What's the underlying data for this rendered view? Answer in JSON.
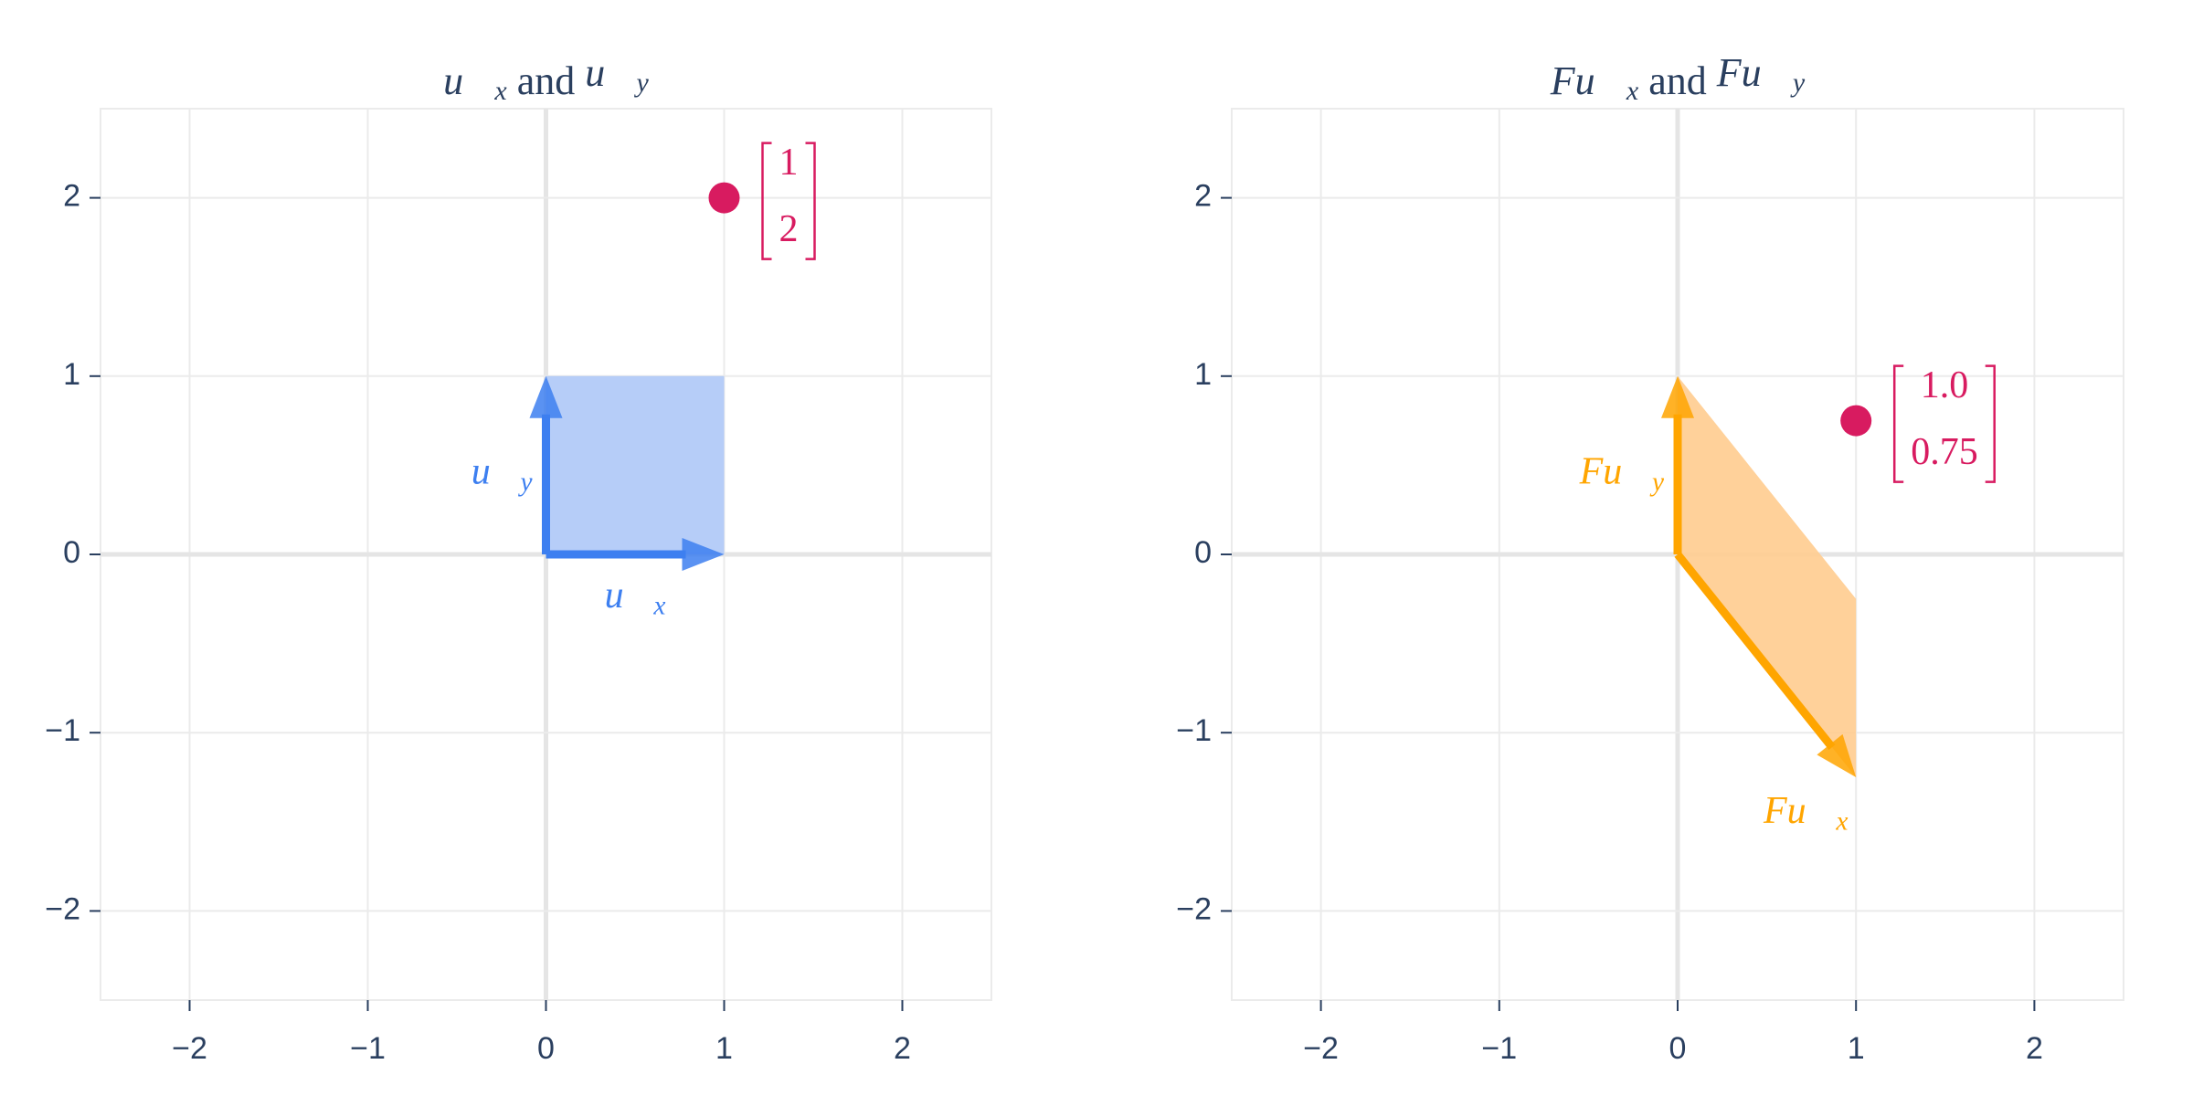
{
  "chart_data": [
    {
      "type": "vector",
      "title": [
        {
          "text": "u⃗",
          "sub": "x"
        },
        {
          "text": " and "
        },
        {
          "text": "u⃗",
          "sub": "y"
        }
      ],
      "xlim": [
        -2.5,
        2.5
      ],
      "ylim": [
        -2.5,
        2.5
      ],
      "xticks": [
        {
          "value": -2,
          "label": "−2"
        },
        {
          "value": -1,
          "label": "−1"
        },
        0,
        1,
        2
      ],
      "yticks": [
        {
          "value": -2,
          "label": "−2"
        },
        {
          "value": -1,
          "label": "−1"
        },
        0,
        1,
        2
      ],
      "grid": true,
      "vectors": [
        {
          "name": {
            "text": "u⃗",
            "sub": "x"
          },
          "x": 1,
          "y": 0
        },
        {
          "name": {
            "text": "u⃗",
            "sub": "y"
          },
          "x": 0,
          "y": 1
        }
      ],
      "color": "#3d7ff0",
      "fill_color": "#aec8f7",
      "point": {
        "x": 1,
        "y": 2,
        "color": "#d81b60"
      }
    },
    {
      "type": "vector",
      "title": [
        {
          "text": "Fu⃗",
          "sub": "x"
        },
        {
          "text": " and "
        },
        {
          "text": "Fu⃗",
          "sub": "y"
        }
      ],
      "xlim": [
        -2.5,
        2.5
      ],
      "ylim": [
        -2.5,
        2.5
      ],
      "xticks": [
        {
          "value": -2,
          "label": "−2"
        },
        {
          "value": -1,
          "label": "−1"
        },
        0,
        1,
        2
      ],
      "yticks": [
        {
          "value": -2,
          "label": "−2"
        },
        {
          "value": -1,
          "label": "−1"
        },
        0,
        1,
        2
      ],
      "grid": true,
      "vectors": [
        {
          "name": {
            "text": "Fu⃗",
            "sub": "x"
          },
          "x": 1,
          "y": -1.25
        },
        {
          "name": {
            "text": "Fu⃗",
            "sub": "y"
          },
          "x": 0,
          "y": 1
        }
      ],
      "color": "#ffa500",
      "fill_color": "#ffcc8f",
      "point": {
        "x": 1,
        "y": 0.75,
        "value_labels": [
          "1.0",
          "0.75"
        ],
        "color": "#d81b60"
      }
    }
  ]
}
